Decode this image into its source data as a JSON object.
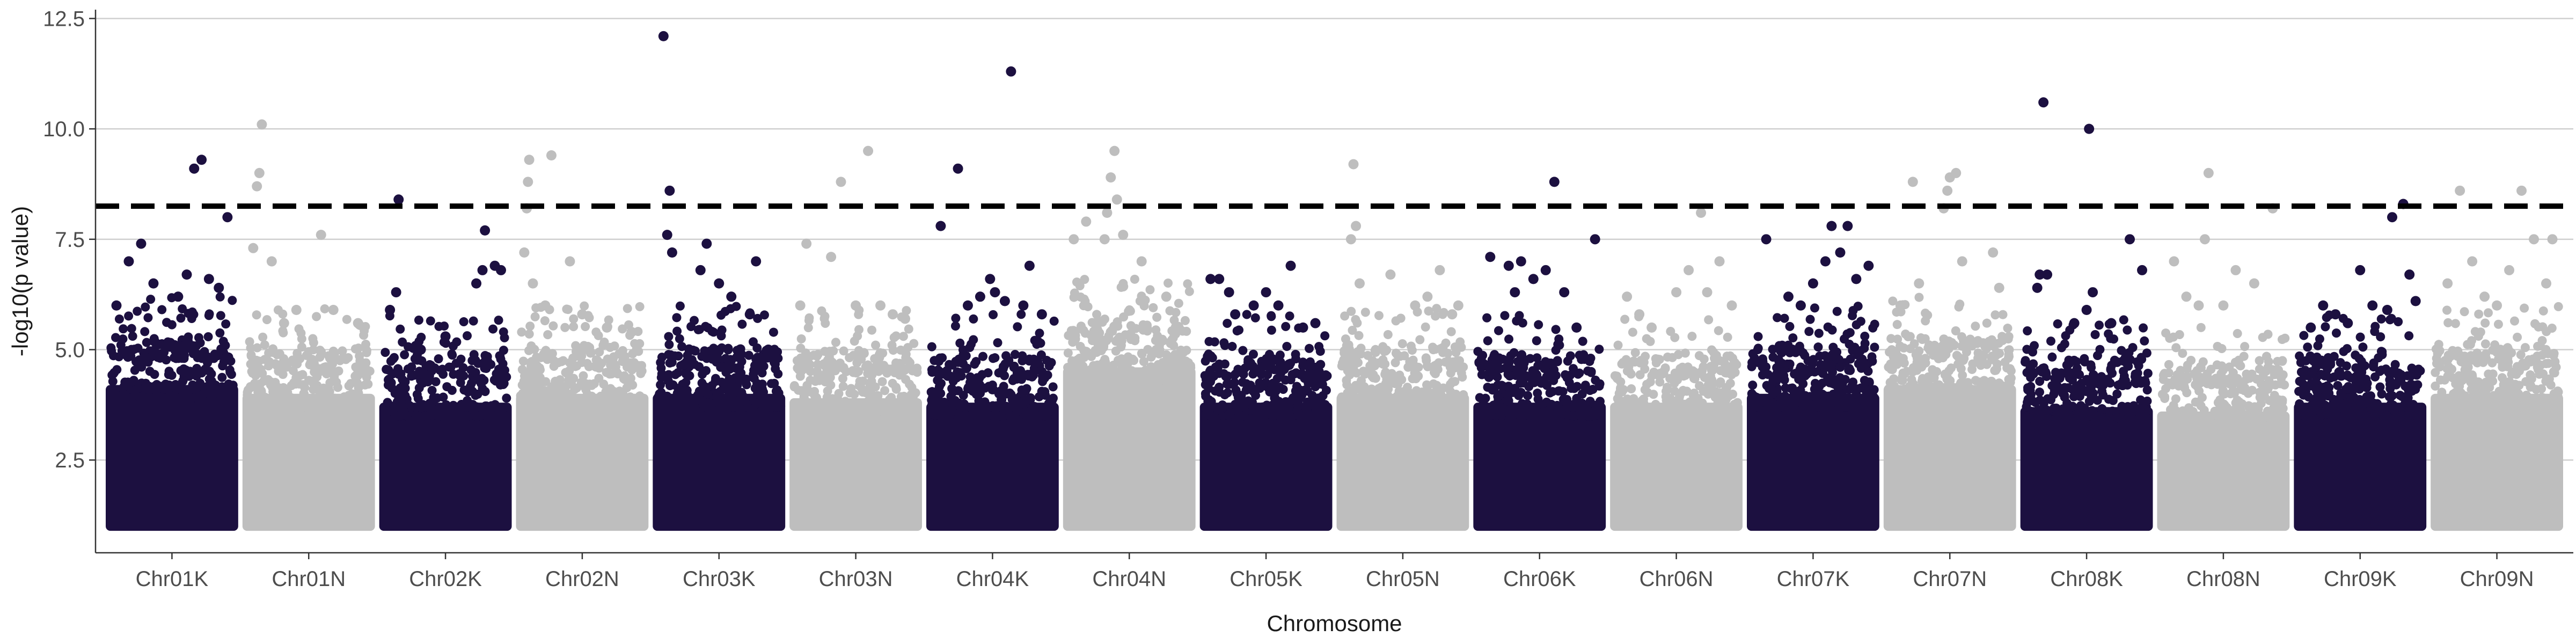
{
  "chart_data": {
    "type": "scatter",
    "title": "",
    "xlabel": "Chromosome",
    "ylabel": "-log10(p value)",
    "ylim": [
      0.4,
      12.7
    ],
    "yticks": [
      2.5,
      5.0,
      7.5,
      10.0,
      12.5
    ],
    "ytick_labels": [
      "2.5",
      "5.0",
      "7.5",
      "10.0",
      "12.5"
    ],
    "grid": "horizontal major",
    "legend": "none",
    "threshold": 8.25,
    "colors": {
      "dark": "#1c1040",
      "light": "#bebebe"
    },
    "categories": [
      "Chr01K",
      "Chr01N",
      "Chr02K",
      "Chr02N",
      "Chr03K",
      "Chr03N",
      "Chr04K",
      "Chr04N",
      "Chr05K",
      "Chr05N",
      "Chr06K",
      "Chr06N",
      "Chr07K",
      "Chr07N",
      "Chr08K",
      "Chr08N",
      "Chr09K",
      "Chr09N"
    ],
    "series": [
      {
        "category": "Chr01K",
        "color": "dark",
        "dense_max": 4.8,
        "points": [
          [
            0.05,
            6.0
          ],
          [
            0.15,
            7.0
          ],
          [
            0.25,
            7.4
          ],
          [
            0.35,
            6.5
          ],
          [
            0.55,
            6.2
          ],
          [
            0.62,
            6.7
          ],
          [
            0.68,
            9.1
          ],
          [
            0.74,
            9.3
          ],
          [
            0.8,
            6.6
          ],
          [
            0.88,
            6.4
          ],
          [
            0.95,
            8.0
          ]
        ]
      },
      {
        "category": "Chr01N",
        "color": "light",
        "dense_max": 4.6,
        "points": [
          [
            0.05,
            7.3
          ],
          [
            0.08,
            8.7
          ],
          [
            0.1,
            9.0
          ],
          [
            0.12,
            10.1
          ],
          [
            0.2,
            7.0
          ],
          [
            0.3,
            5.6
          ],
          [
            0.4,
            5.9
          ],
          [
            0.6,
            7.6
          ],
          [
            0.7,
            5.9
          ],
          [
            0.9,
            5.6
          ]
        ]
      },
      {
        "category": "Chr02K",
        "color": "dark",
        "dense_max": 4.4,
        "points": [
          [
            0.05,
            5.9
          ],
          [
            0.1,
            6.3
          ],
          [
            0.12,
            8.4
          ],
          [
            0.3,
            5.0
          ],
          [
            0.5,
            5.3
          ],
          [
            0.75,
            6.5
          ],
          [
            0.8,
            6.8
          ],
          [
            0.82,
            7.7
          ],
          [
            0.9,
            6.9
          ],
          [
            0.95,
            6.8
          ]
        ]
      },
      {
        "category": "Chr02N",
        "color": "light",
        "dense_max": 4.6,
        "points": [
          [
            0.03,
            7.2
          ],
          [
            0.05,
            8.2
          ],
          [
            0.06,
            8.8
          ],
          [
            0.07,
            9.3
          ],
          [
            0.1,
            6.5
          ],
          [
            0.25,
            9.4
          ],
          [
            0.2,
            6.0
          ],
          [
            0.4,
            7.0
          ],
          [
            0.5,
            5.8
          ],
          [
            0.7,
            5.5
          ],
          [
            0.9,
            5.4
          ]
        ]
      },
      {
        "category": "Chr03K",
        "color": "dark",
        "dense_max": 4.6,
        "points": [
          [
            0.05,
            12.1
          ],
          [
            0.1,
            8.6
          ],
          [
            0.08,
            7.6
          ],
          [
            0.12,
            7.2
          ],
          [
            0.35,
            6.8
          ],
          [
            0.4,
            7.4
          ],
          [
            0.5,
            6.5
          ],
          [
            0.6,
            6.2
          ],
          [
            0.75,
            5.8
          ],
          [
            0.8,
            7.0
          ],
          [
            0.9,
            5.0
          ]
        ]
      },
      {
        "category": "Chr03N",
        "color": "light",
        "dense_max": 4.5,
        "points": [
          [
            0.05,
            6.0
          ],
          [
            0.1,
            7.4
          ],
          [
            0.3,
            7.1
          ],
          [
            0.38,
            8.8
          ],
          [
            0.5,
            6.0
          ],
          [
            0.6,
            9.5
          ],
          [
            0.7,
            6.0
          ],
          [
            0.8,
            5.8
          ],
          [
            0.9,
            5.7
          ]
        ]
      },
      {
        "category": "Chr04K",
        "color": "dark",
        "dense_max": 4.4,
        "points": [
          [
            0.08,
            7.8
          ],
          [
            0.22,
            9.1
          ],
          [
            0.3,
            6.0
          ],
          [
            0.4,
            6.2
          ],
          [
            0.48,
            6.6
          ],
          [
            0.52,
            6.3
          ],
          [
            0.6,
            6.1
          ],
          [
            0.65,
            11.3
          ],
          [
            0.75,
            6.0
          ],
          [
            0.8,
            6.9
          ],
          [
            0.9,
            5.8
          ]
        ]
      },
      {
        "category": "Chr04N",
        "color": "light",
        "dense_max": 5.2,
        "points": [
          [
            0.05,
            7.5
          ],
          [
            0.15,
            7.9
          ],
          [
            0.3,
            7.5
          ],
          [
            0.32,
            8.1
          ],
          [
            0.35,
            8.9
          ],
          [
            0.38,
            9.5
          ],
          [
            0.4,
            8.4
          ],
          [
            0.45,
            7.6
          ],
          [
            0.6,
            7.0
          ],
          [
            0.8,
            6.2
          ],
          [
            0.9,
            5.5
          ]
        ]
      },
      {
        "category": "Chr05K",
        "color": "dark",
        "dense_max": 4.4,
        "points": [
          [
            0.05,
            6.6
          ],
          [
            0.12,
            6.6
          ],
          [
            0.2,
            6.3
          ],
          [
            0.25,
            5.8
          ],
          [
            0.4,
            6.0
          ],
          [
            0.5,
            6.3
          ],
          [
            0.6,
            6.0
          ],
          [
            0.7,
            6.9
          ],
          [
            0.8,
            5.5
          ],
          [
            0.9,
            5.6
          ]
        ]
      },
      {
        "category": "Chr05N",
        "color": "light",
        "dense_max": 4.6,
        "points": [
          [
            0.1,
            9.2
          ],
          [
            0.12,
            7.8
          ],
          [
            0.08,
            7.5
          ],
          [
            0.15,
            6.5
          ],
          [
            0.4,
            6.7
          ],
          [
            0.6,
            6.0
          ],
          [
            0.7,
            6.2
          ],
          [
            0.8,
            6.8
          ],
          [
            0.9,
            5.8
          ],
          [
            0.95,
            6.0
          ]
        ]
      },
      {
        "category": "Chr06K",
        "color": "dark",
        "dense_max": 4.4,
        "points": [
          [
            0.1,
            7.1
          ],
          [
            0.25,
            6.9
          ],
          [
            0.3,
            6.3
          ],
          [
            0.35,
            7.0
          ],
          [
            0.45,
            6.6
          ],
          [
            0.55,
            6.8
          ],
          [
            0.62,
            8.8
          ],
          [
            0.7,
            6.3
          ],
          [
            0.8,
            5.5
          ],
          [
            0.95,
            7.5
          ]
        ]
      },
      {
        "category": "Chr06N",
        "color": "light",
        "dense_max": 4.4,
        "points": [
          [
            0.1,
            6.2
          ],
          [
            0.2,
            5.8
          ],
          [
            0.3,
            5.5
          ],
          [
            0.5,
            6.3
          ],
          [
            0.6,
            6.8
          ],
          [
            0.7,
            8.1
          ],
          [
            0.75,
            6.3
          ],
          [
            0.85,
            7.0
          ],
          [
            0.95,
            6.0
          ]
        ]
      },
      {
        "category": "Chr07K",
        "color": "dark",
        "dense_max": 4.6,
        "points": [
          [
            0.12,
            7.5
          ],
          [
            0.3,
            6.2
          ],
          [
            0.4,
            6.0
          ],
          [
            0.5,
            6.5
          ],
          [
            0.6,
            7.0
          ],
          [
            0.65,
            7.8
          ],
          [
            0.72,
            7.2
          ],
          [
            0.78,
            7.8
          ],
          [
            0.85,
            6.6
          ],
          [
            0.95,
            6.9
          ]
        ]
      },
      {
        "category": "Chr07N",
        "color": "light",
        "dense_max": 4.8,
        "points": [
          [
            0.1,
            6.0
          ],
          [
            0.2,
            8.8
          ],
          [
            0.25,
            6.5
          ],
          [
            0.45,
            8.2
          ],
          [
            0.48,
            8.6
          ],
          [
            0.5,
            8.9
          ],
          [
            0.55,
            9.0
          ],
          [
            0.6,
            7.0
          ],
          [
            0.85,
            7.2
          ],
          [
            0.9,
            6.4
          ]
        ]
      },
      {
        "category": "Chr08K",
        "color": "dark",
        "dense_max": 4.3,
        "points": [
          [
            0.1,
            6.4
          ],
          [
            0.12,
            6.7
          ],
          [
            0.18,
            6.7
          ],
          [
            0.15,
            10.6
          ],
          [
            0.4,
            5.6
          ],
          [
            0.5,
            5.9
          ],
          [
            0.55,
            6.3
          ],
          [
            0.52,
            10.0
          ],
          [
            0.7,
            5.6
          ],
          [
            0.85,
            7.5
          ],
          [
            0.95,
            6.8
          ]
        ]
      },
      {
        "category": "Chr08N",
        "color": "light",
        "dense_max": 4.2,
        "points": [
          [
            0.1,
            7.0
          ],
          [
            0.2,
            6.2
          ],
          [
            0.3,
            6.0
          ],
          [
            0.35,
            7.5
          ],
          [
            0.38,
            9.0
          ],
          [
            0.5,
            6.0
          ],
          [
            0.6,
            6.8
          ],
          [
            0.75,
            6.5
          ],
          [
            0.9,
            8.2
          ]
        ]
      },
      {
        "category": "Chr09K",
        "color": "dark",
        "dense_max": 4.4,
        "points": [
          [
            0.1,
            5.5
          ],
          [
            0.2,
            6.0
          ],
          [
            0.3,
            5.8
          ],
          [
            0.4,
            5.6
          ],
          [
            0.5,
            6.8
          ],
          [
            0.6,
            6.0
          ],
          [
            0.72,
            5.9
          ],
          [
            0.76,
            8.0
          ],
          [
            0.85,
            8.3
          ],
          [
            0.9,
            6.7
          ],
          [
            0.95,
            6.1
          ]
        ]
      },
      {
        "category": "Chr09N",
        "color": "light",
        "dense_max": 4.6,
        "points": [
          [
            0.1,
            6.5
          ],
          [
            0.2,
            8.6
          ],
          [
            0.3,
            7.0
          ],
          [
            0.4,
            6.2
          ],
          [
            0.5,
            6.0
          ],
          [
            0.6,
            6.8
          ],
          [
            0.7,
            8.6
          ],
          [
            0.8,
            7.5
          ],
          [
            0.9,
            6.5
          ],
          [
            0.95,
            7.5
          ]
        ]
      }
    ]
  }
}
